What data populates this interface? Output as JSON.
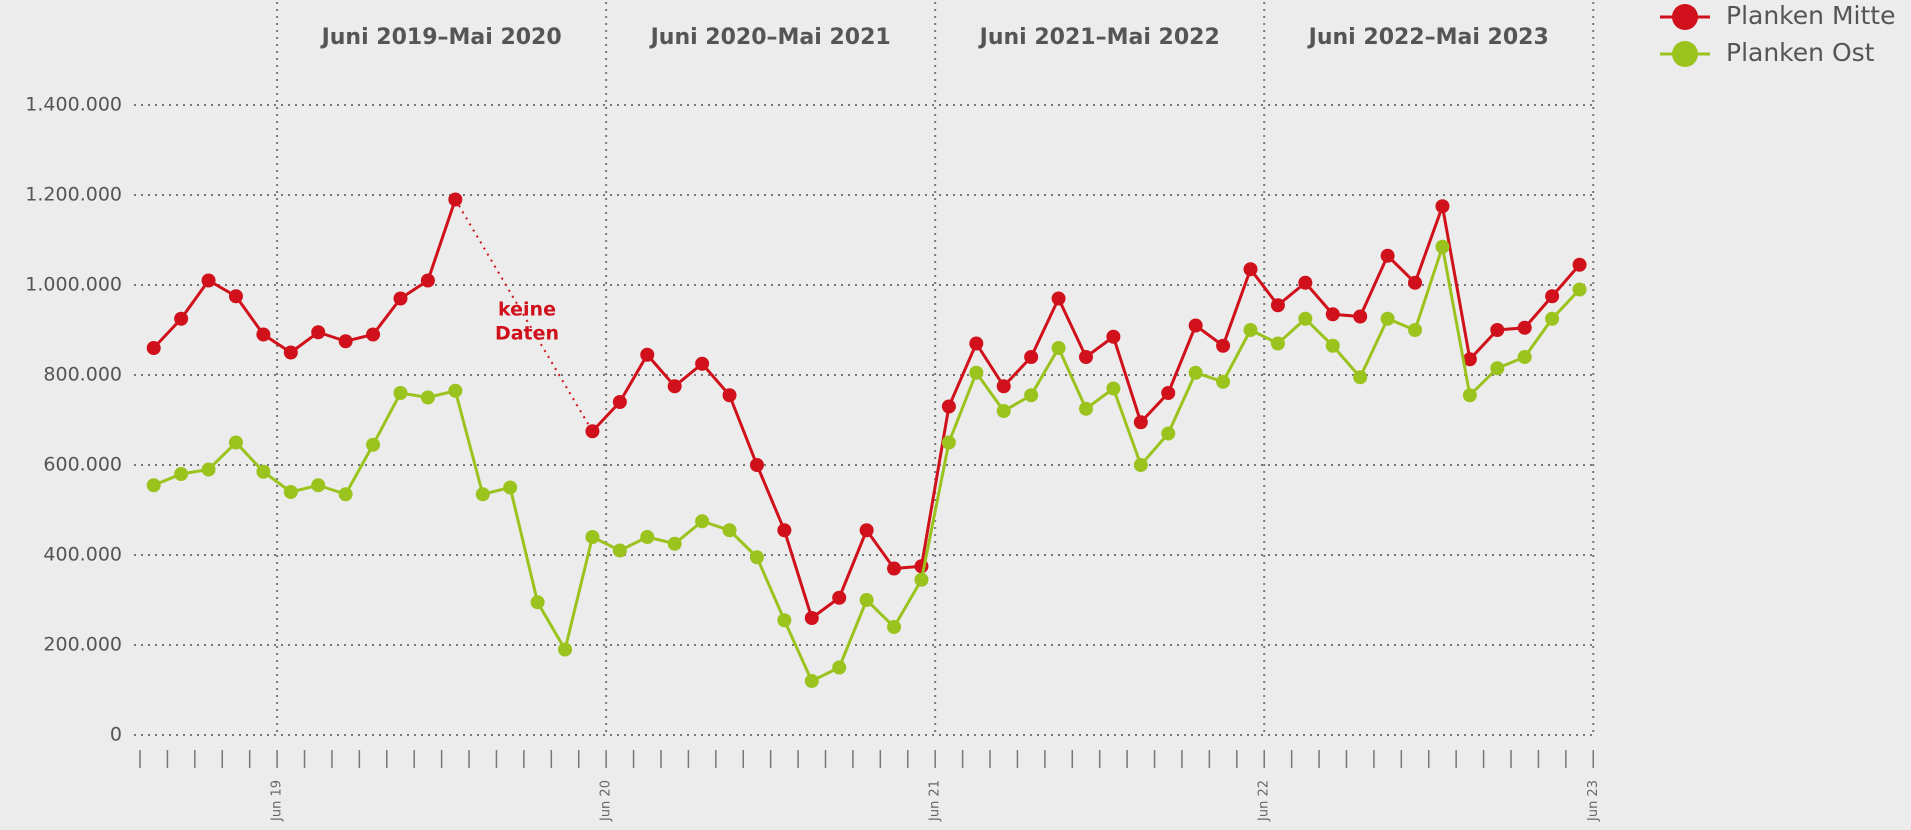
{
  "chart_data": {
    "type": "line",
    "categories": [
      null,
      null,
      null,
      null,
      null,
      "Jun 19",
      null,
      null,
      null,
      null,
      null,
      null,
      null,
      null,
      null,
      null,
      null,
      "Jun 20",
      null,
      null,
      null,
      null,
      null,
      null,
      null,
      null,
      null,
      null,
      null,
      "Jun 21",
      null,
      null,
      null,
      null,
      null,
      null,
      null,
      null,
      null,
      null,
      null,
      "Jun 22",
      null,
      null,
      null,
      null,
      null,
      null,
      null,
      null,
      null,
      null,
      null,
      "Jun 23"
    ],
    "periods": [
      "Juni 2019–Mai 2020",
      "Juni 2020–Mai 2021",
      "Juni 2021–Mai 2022",
      "Juni 2022–Mai 2023"
    ],
    "series": [
      {
        "name": "Planken Mitte",
        "color": "#d0111b",
        "values": [
          860000,
          925000,
          1010000,
          975000,
          890000,
          850000,
          895000,
          875000,
          890000,
          970000,
          1010000,
          1190000,
          null,
          null,
          null,
          null,
          675000,
          740000,
          845000,
          775000,
          825000,
          755000,
          600000,
          455000,
          260000,
          305000,
          455000,
          370000,
          375000,
          730000,
          870000,
          775000,
          840000,
          970000,
          840000,
          885000,
          695000,
          760000,
          910000,
          865000,
          1035000,
          955000,
          1005000,
          935000,
          930000,
          1065000,
          1005000,
          1175000,
          835000,
          900000,
          905000,
          975000,
          1045000,
          null
        ]
      },
      {
        "name": "Planken Ost",
        "color": "#9bc31e",
        "values": [
          555000,
          580000,
          590000,
          650000,
          585000,
          540000,
          555000,
          535000,
          645000,
          760000,
          750000,
          765000,
          535000,
          550000,
          295000,
          190000,
          440000,
          410000,
          440000,
          425000,
          475000,
          455000,
          395000,
          255000,
          120000,
          150000,
          300000,
          240000,
          345000,
          650000,
          805000,
          720000,
          755000,
          860000,
          725000,
          770000,
          600000,
          670000,
          805000,
          785000,
          900000,
          870000,
          925000,
          865000,
          795000,
          925000,
          900000,
          1085000,
          755000,
          815000,
          840000,
          925000,
          990000,
          null
        ]
      }
    ],
    "annotation_lines": [
      "keine",
      "Daten"
    ],
    "ylim": [
      0,
      1400000
    ],
    "yticks": [
      0,
      {
        "value": 200000,
        "label": "200.000"
      },
      {
        "value": 400000,
        "label": "400.000"
      },
      {
        "value": 600000,
        "label": "600.000"
      },
      {
        "value": 800000,
        "label": "800.000"
      },
      {
        "value": 1000000,
        "label": "1.000.000"
      },
      {
        "value": 1200000,
        "label": "1.200.000"
      },
      {
        "value": 1400000,
        "label": "1.400.000"
      }
    ],
    "grid": true,
    "legend": "top-right"
  }
}
